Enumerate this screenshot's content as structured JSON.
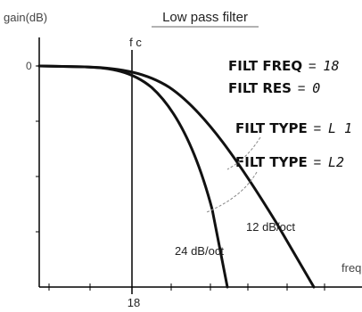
{
  "title": "Low pass filter",
  "y_axis_label": "gain(dB)",
  "y_tick_zero": "0",
  "x_axis_label": "freq",
  "cutoff_label": "f c",
  "cutoff_value": "18",
  "params": {
    "filt_freq_name": "FILT FREQ",
    "filt_freq_value": "18",
    "filt_res_name": "FILT RES",
    "filt_res_value": "0",
    "filt_type_name": "FILT TYPE",
    "filt_type_l1": "L 1",
    "filt_type_l2": "L2",
    "equals": "="
  },
  "curve_labels": {
    "slope_12": "12 dB/oct",
    "slope_24": "24 dB/oct"
  },
  "colors": {
    "axis": "#000000",
    "curve": "#111111",
    "leader": "#888888",
    "title_underline": "#999999",
    "text": "#222222"
  }
}
